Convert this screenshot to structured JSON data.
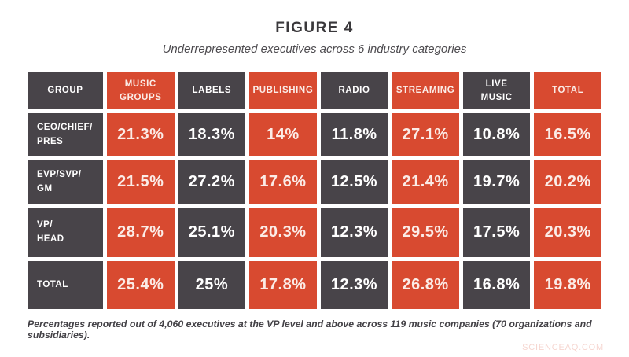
{
  "figure": {
    "title": "FIGURE 4",
    "subtitle": "Underrepresented executives across 6 industry categories",
    "footnote": "Percentages reported out of 4,060 executives at the VP level and above across 119 music companies (70 organizations and subsidiaries)."
  },
  "watermark": "SCIENCEAQ.COM",
  "colors": {
    "dark_cell": "#484449",
    "accent_orange": "#d84a30",
    "text_on_dark": "#ffffff",
    "text_on_orange": "#fbece7"
  },
  "table": {
    "header": [
      "GROUP",
      "MUSIC\nGROUPS",
      "LABELS",
      "PUBLISHING",
      "RADIO",
      "STREAMING",
      "LIVE\nMUSIC",
      "TOTAL"
    ],
    "rows": [
      {
        "label": "CEO/CHIEF/\nPRES",
        "values": [
          "21.3%",
          "18.3%",
          "14%",
          "11.8%",
          "27.1%",
          "10.8%",
          "16.5%"
        ]
      },
      {
        "label": "EVP/SVP/\nGM",
        "values": [
          "21.5%",
          "27.2%",
          "17.6%",
          "12.5%",
          "21.4%",
          "19.7%",
          "20.2%"
        ]
      },
      {
        "label": "VP/\nHEAD",
        "values": [
          "28.7%",
          "25.1%",
          "20.3%",
          "12.3%",
          "29.5%",
          "17.5%",
          "20.3%"
        ]
      },
      {
        "label": "TOTAL",
        "values": [
          "25.4%",
          "25%",
          "17.8%",
          "12.3%",
          "26.8%",
          "16.8%",
          "19.8%"
        ]
      }
    ]
  },
  "chart_data": {
    "type": "table",
    "title": "FIGURE 4",
    "subtitle": "Underrepresented executives across 6 industry categories",
    "columns": [
      "MUSIC GROUPS",
      "LABELS",
      "PUBLISHING",
      "RADIO",
      "STREAMING",
      "LIVE MUSIC",
      "TOTAL"
    ],
    "row_labels": [
      "CEO/CHIEF/PRES",
      "EVP/SVP/GM",
      "VP/HEAD",
      "TOTAL"
    ],
    "values_percent": [
      [
        21.3,
        18.3,
        14,
        11.8,
        27.1,
        10.8,
        16.5
      ],
      [
        21.5,
        27.2,
        17.6,
        12.5,
        21.4,
        19.7,
        20.2
      ],
      [
        28.7,
        25.1,
        20.3,
        12.3,
        29.5,
        17.5,
        20.3
      ],
      [
        25.4,
        25,
        17.8,
        12.3,
        26.8,
        16.8,
        19.8
      ]
    ],
    "footnote": "Percentages reported out of 4,060 executives at the VP level and above across 119 music companies (70 organizations and subsidiaries)."
  }
}
